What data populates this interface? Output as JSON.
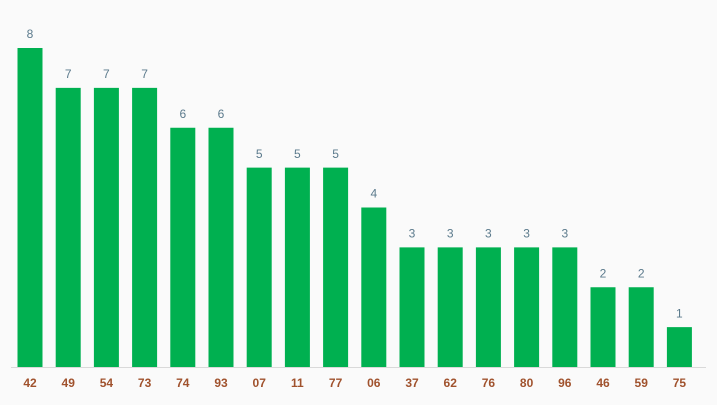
{
  "chart_data": {
    "type": "bar",
    "categories": [
      "42",
      "49",
      "54",
      "73",
      "74",
      "93",
      "07",
      "11",
      "77",
      "06",
      "37",
      "62",
      "76",
      "80",
      "96",
      "46",
      "59",
      "75"
    ],
    "values": [
      8,
      7,
      7,
      7,
      6,
      6,
      5,
      5,
      5,
      4,
      3,
      3,
      3,
      3,
      3,
      2,
      2,
      1
    ],
    "color": "#00b050",
    "ylim": [
      0,
      8
    ]
  }
}
